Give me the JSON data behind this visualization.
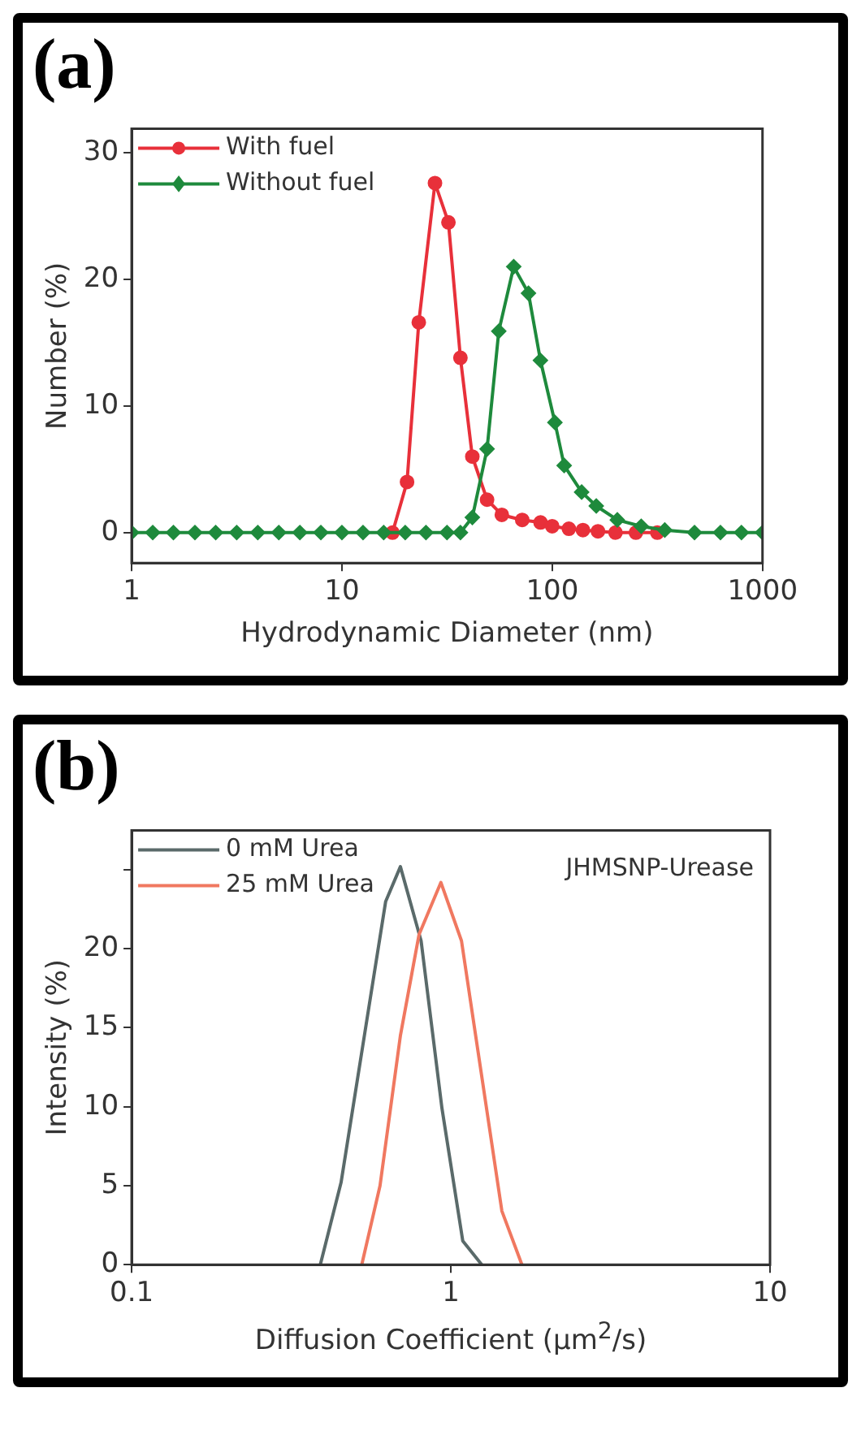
{
  "chart_data": [
    {
      "type": "line",
      "title": "(a)",
      "xlabel": "Hydrodynamic Diameter (nm)",
      "ylabel": "Number (%)",
      "log": "x",
      "xlim": [
        1,
        1000
      ],
      "xticks": [
        1,
        10,
        100,
        1000
      ],
      "ylim": [
        -2.4,
        31.9
      ],
      "yticks": [
        0,
        10,
        20,
        30
      ],
      "grid": false,
      "legend": "top left",
      "series": [
        {
          "name": "With fuel",
          "color": "#e8303a",
          "marker": "circle",
          "x": [
            17.4,
            20.4,
            23.2,
            27.7,
            32.1,
            36.6,
            41.7,
            49,
            57.6,
            72,
            88,
            100,
            120,
            140,
            165,
            200,
            250,
            316
          ],
          "values": [
            0,
            4.0,
            16.6,
            27.6,
            24.5,
            13.8,
            6.0,
            2.6,
            1.4,
            1.0,
            0.8,
            0.5,
            0.3,
            0.2,
            0.1,
            0,
            0,
            0
          ]
        },
        {
          "name": "Without fuel",
          "color": "#1e8a3c",
          "marker": "diamond",
          "x": [
            1,
            1.26,
            1.58,
            2,
            2.51,
            3.16,
            3.98,
            5.01,
            6.31,
            7.94,
            10,
            12.6,
            15.8,
            20,
            25.1,
            31.6,
            36.6,
            41.7,
            49,
            55.7,
            65.6,
            77.1,
            87.9,
            103,
            114,
            138,
            162,
            204,
            265,
            343,
            475,
            631,
            794,
            1000
          ],
          "values": [
            0,
            0,
            0,
            0,
            0,
            0,
            0,
            0,
            0,
            0,
            0,
            0,
            0,
            0,
            0,
            0,
            0,
            1.2,
            6.6,
            15.9,
            21.0,
            18.9,
            13.6,
            8.7,
            5.3,
            3.2,
            2.1,
            1.0,
            0.5,
            0.2,
            0,
            0,
            0,
            0
          ]
        }
      ]
    },
    {
      "type": "line",
      "title": "(b)",
      "xlabel": "Diffusion Coefficient (µm$^{2}$/s)",
      "ylabel": "Intensity (%)",
      "log": "x",
      "xlim": [
        0.1,
        10
      ],
      "xticks": [
        0.1,
        1,
        10
      ],
      "ylim": [
        0,
        27.5
      ],
      "yticks": [
        0,
        5,
        10,
        15,
        20,
        {
          "value": 25,
          "label": null
        }
      ],
      "grid": false,
      "legend": "top left",
      "marker": "none",
      "annotations": [
        "JHMSNP-Urease"
      ],
      "series": [
        {
          "name": "0 mM Urea",
          "color": "#5a6a6a",
          "x": [
            0.39,
            0.453,
            0.625,
            0.695,
            0.807,
            0.938,
            1.09,
            1.25
          ],
          "values": [
            0,
            5.2,
            23.0,
            25.2,
            20.5,
            9.9,
            1.5,
            0
          ]
        },
        {
          "name": "25 mM Urea",
          "color": "#f07860",
          "x": [
            0.526,
            0.6,
            0.695,
            0.795,
            0.931,
            1.08,
            1.445,
            1.67
          ],
          "values": [
            0,
            5.0,
            14.5,
            20.9,
            24.2,
            20.5,
            3.4,
            0
          ]
        }
      ]
    }
  ]
}
